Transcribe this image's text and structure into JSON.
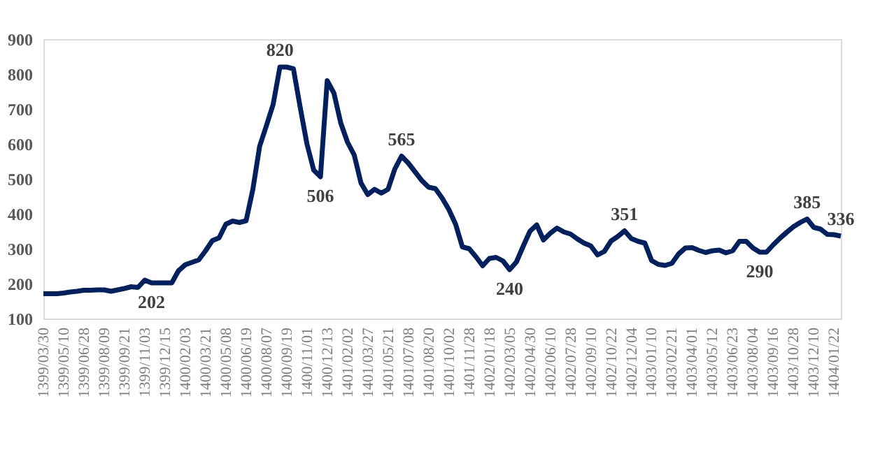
{
  "chart_data": {
    "type": "line",
    "categories": [
      "1399/03/30",
      null,
      null,
      "1399/05/10",
      null,
      null,
      "1399/06/28",
      null,
      null,
      "1399/08/09",
      null,
      null,
      "1399/09/21",
      null,
      null,
      "1399/11/03",
      null,
      null,
      "1399/12/15",
      null,
      null,
      "1400/02/03",
      null,
      null,
      "1400/03/21",
      null,
      null,
      "1400/05/08",
      null,
      null,
      "1400/06/19",
      null,
      null,
      "1400/08/07",
      null,
      null,
      "1400/09/19",
      null,
      null,
      "1400/11/01",
      null,
      null,
      "1400/12/13",
      null,
      null,
      "1401/02/02",
      null,
      null,
      "1401/03/27",
      null,
      null,
      "1401/05/21",
      null,
      null,
      "1401/07/08",
      null,
      null,
      "1401/08/20",
      null,
      null,
      "1401/10/02",
      null,
      null,
      "1401/11/28",
      null,
      null,
      "1402/01/18",
      null,
      null,
      "1402/03/05",
      null,
      null,
      "1402/04/30",
      null,
      null,
      "1402/06/10",
      null,
      null,
      "1402/07/28",
      null,
      null,
      "1402/09/10",
      null,
      null,
      "1402/10/22",
      null,
      null,
      "1402/12/04",
      null,
      null,
      "1403/01/10",
      null,
      null,
      "1403/02/21",
      null,
      null,
      "1403/04/01",
      null,
      null,
      "1403/05/12",
      null,
      null,
      "1403/06/23",
      null,
      null,
      "1403/08/04",
      null,
      null,
      "1403/09/16",
      null,
      null,
      "1403/10/28",
      null,
      null,
      "1403/12/10",
      null,
      null,
      "1404/01/22",
      null
    ],
    "series": [
      {
        "color": "#002060",
        "values": [
          171,
          171,
          171,
          173,
          176,
          178,
          181,
          181,
          182,
          182,
          178,
          182,
          186,
          191,
          189,
          210,
          202,
          202,
          202,
          202,
          237,
          254,
          261,
          268,
          294,
          323,
          331,
          370,
          379,
          375,
          380,
          470,
          593,
          652,
          713,
          820,
          820,
          815,
          705,
          600,
          525,
          506,
          781,
          745,
          660,
          605,
          568,
          488,
          455,
          470,
          459,
          470,
          528,
          565,
          545,
          520,
          495,
          476,
          472,
          445,
          412,
          370,
          305,
          300,
          277,
          251,
          272,
          275,
          265,
          240,
          262,
          307,
          350,
          368,
          325,
          344,
          359,
          348,
          342,
          328,
          316,
          308,
          282,
          292,
          322,
          335,
          351,
          329,
          321,
          316,
          266,
          255,
          252,
          258,
          285,
          302,
          303,
          295,
          289,
          294,
          296,
          288,
          294,
          321,
          321,
          302,
          290,
          290,
          311,
          330,
          347,
          363,
          375,
          385,
          361,
          356,
          341,
          340,
          336
        ]
      }
    ],
    "ylim": [
      100,
      900
    ],
    "yticks": [
      100,
      200,
      300,
      400,
      500,
      600,
      700,
      800,
      900
    ],
    "grid": false,
    "marker": "none",
    "line_style": "solid",
    "annotations": [
      {
        "text": "202",
        "y": 202
      },
      {
        "text": "820",
        "y": 820
      },
      {
        "text": "506",
        "y": 506
      },
      {
        "text": "565",
        "y": 565
      },
      {
        "text": "240",
        "y": 240
      },
      {
        "text": "351",
        "y": 351
      },
      {
        "text": "290",
        "y": 290
      },
      {
        "text": "385",
        "y": 385
      },
      {
        "text": "336",
        "y": 336
      }
    ]
  }
}
